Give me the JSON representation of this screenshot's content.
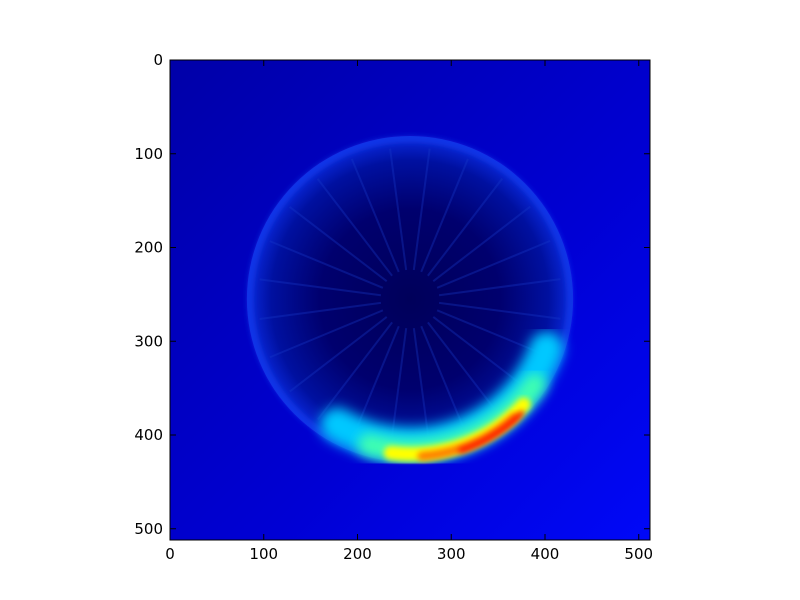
{
  "chart_data": {
    "type": "heatmap",
    "title": "",
    "xlabel": "",
    "ylabel": "",
    "image_size": [
      512,
      512
    ],
    "xlim": [
      0,
      512
    ],
    "ylim": [
      512,
      0
    ],
    "colormap": "jet",
    "x_ticks": [
      0,
      100,
      200,
      300,
      400,
      500
    ],
    "y_ticks": [
      0,
      100,
      200,
      300,
      400,
      500
    ],
    "x_tick_labels": [
      "0",
      "100",
      "200",
      "300",
      "400",
      "500"
    ],
    "y_tick_labels": [
      "0",
      "100",
      "200",
      "300",
      "400",
      "500"
    ],
    "features": {
      "background_color": "#0000cc",
      "disk": {
        "center": [
          256,
          255
        ],
        "radius": 174
      },
      "hot_arc": {
        "angle_start_deg": 40,
        "angle_end_deg": 100,
        "peak_angle_deg": 60,
        "peak_color": "#ff0000"
      }
    }
  }
}
